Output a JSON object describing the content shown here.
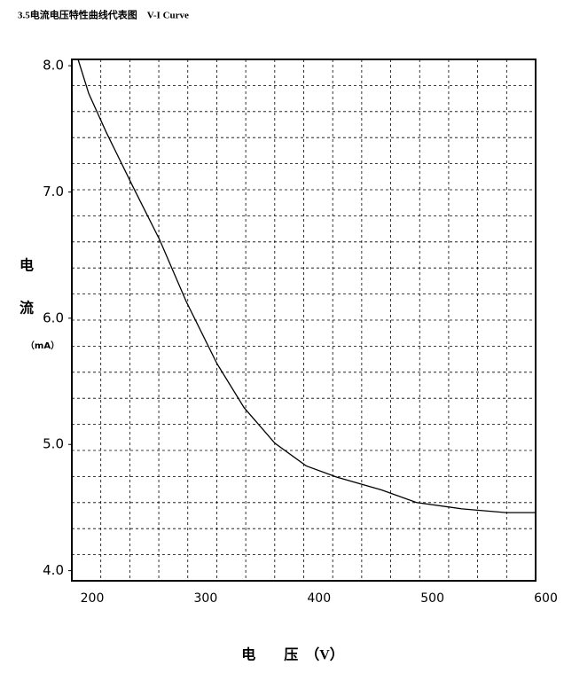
{
  "chart_data": {
    "type": "line",
    "title": "3.5电流电压特性曲线代表图　V-I Curve",
    "xlabel": "电　　压　（V）",
    "ylabel": [
      "电",
      "流",
      "（mA）"
    ],
    "x": [
      187.5,
      196.9,
      212.5,
      236,
      259.5,
      283,
      310,
      334,
      361,
      388.7,
      416,
      455,
      486,
      526,
      565,
      591
    ],
    "series": [
      {
        "name": "V-I",
        "color": "#000000",
        "values": [
          8.05,
          7.78,
          7.47,
          7.04,
          6.62,
          6.13,
          5.64,
          5.29,
          5.01,
          4.83,
          4.74,
          4.64,
          4.54,
          4.49,
          4.46,
          4.46
        ]
      }
    ],
    "xlim": [
      182,
      591
    ],
    "xticks": [
      200,
      300,
      400,
      500,
      600
    ],
    "ylim": [
      3.92,
      8.05
    ],
    "yticks": [
      {
        "value": 4,
        "label": "4.0"
      },
      {
        "value": 5,
        "label": "5.0"
      },
      {
        "value": 6,
        "label": "6.0"
      },
      {
        "value": 7,
        "label": "7.0"
      },
      {
        "value": 8,
        "label": "8.0"
      }
    ],
    "grid": true
  }
}
